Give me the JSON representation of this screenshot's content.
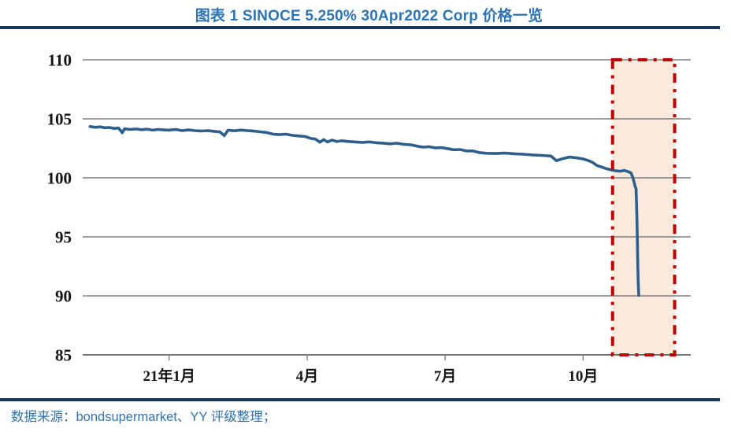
{
  "header": {
    "title": "图表 1 SINOCE 5.250% 30Apr2022 Corp 价格一览"
  },
  "footer": {
    "source_text": "数据来源：bondsupermarket、YY 评级整理；"
  },
  "colors": {
    "accent_blue": "#2E74B5",
    "rule_navy": "#17365D",
    "grid_gray": "#7F7F7F",
    "axis_gray": "#666666",
    "line_blue": "#2E5F8C",
    "highlight_red": "#C00000",
    "highlight_fill": "#FBE9DB",
    "label_black": "#141414"
  },
  "chart_data": {
    "type": "line",
    "title": "SINOCE 5.250% 30Apr2022 Corp 价格一览",
    "xlabel": "",
    "ylabel": "",
    "ylim": [
      85,
      110
    ],
    "yticks": [
      110,
      105,
      100,
      95,
      90,
      85
    ],
    "xlim": [
      -1.88,
      11.34
    ],
    "xticks": [
      {
        "t": 0,
        "label": "21年1月"
      },
      {
        "t": 3,
        "label": "4月"
      },
      {
        "t": 6,
        "label": "7月"
      },
      {
        "t": 9,
        "label": "10月"
      }
    ],
    "grid": true,
    "legend_position": "none",
    "highlight_region": {
      "t0": 9.64,
      "t1": 10.99,
      "v0": 85,
      "v1": 110,
      "fill": "#FBE9DB",
      "border_color": "#C00000",
      "border_style": "dash-dot"
    },
    "series": [
      {
        "name": "SINOCE 5.250% 30Apr2022 Corp",
        "color": "#2E5F8C",
        "points": [
          [
            -1.72,
            104.35
          ],
          [
            -1.6,
            104.28
          ],
          [
            -1.5,
            104.32
          ],
          [
            -1.4,
            104.25
          ],
          [
            -1.3,
            104.27
          ],
          [
            -1.2,
            104.18
          ],
          [
            -1.1,
            104.22
          ],
          [
            -1.02,
            103.82
          ],
          [
            -0.97,
            104.15
          ],
          [
            -0.85,
            104.1
          ],
          [
            -0.72,
            104.14
          ],
          [
            -0.6,
            104.08
          ],
          [
            -0.48,
            104.12
          ],
          [
            -0.36,
            104.04
          ],
          [
            -0.24,
            104.1
          ],
          [
            -0.12,
            104.06
          ],
          [
            0.0,
            104.04
          ],
          [
            0.14,
            104.1
          ],
          [
            0.28,
            104.0
          ],
          [
            0.42,
            104.06
          ],
          [
            0.56,
            104.0
          ],
          [
            0.7,
            103.97
          ],
          [
            0.84,
            104.0
          ],
          [
            0.98,
            103.94
          ],
          [
            1.1,
            103.9
          ],
          [
            1.2,
            103.58
          ],
          [
            1.28,
            104.04
          ],
          [
            1.42,
            103.99
          ],
          [
            1.56,
            104.05
          ],
          [
            1.7,
            104.0
          ],
          [
            1.84,
            103.96
          ],
          [
            1.98,
            103.9
          ],
          [
            2.12,
            103.84
          ],
          [
            2.26,
            103.7
          ],
          [
            2.4,
            103.66
          ],
          [
            2.54,
            103.7
          ],
          [
            2.68,
            103.6
          ],
          [
            2.82,
            103.55
          ],
          [
            2.96,
            103.5
          ],
          [
            3.08,
            103.34
          ],
          [
            3.18,
            103.28
          ],
          [
            3.28,
            103.02
          ],
          [
            3.36,
            103.24
          ],
          [
            3.44,
            103.04
          ],
          [
            3.54,
            103.2
          ],
          [
            3.64,
            103.08
          ],
          [
            3.76,
            103.14
          ],
          [
            3.9,
            103.08
          ],
          [
            4.05,
            103.04
          ],
          [
            4.2,
            103.0
          ],
          [
            4.35,
            103.05
          ],
          [
            4.5,
            102.97
          ],
          [
            4.65,
            102.94
          ],
          [
            4.8,
            102.88
          ],
          [
            4.95,
            102.93
          ],
          [
            5.1,
            102.84
          ],
          [
            5.25,
            102.8
          ],
          [
            5.4,
            102.68
          ],
          [
            5.52,
            102.6
          ],
          [
            5.64,
            102.64
          ],
          [
            5.78,
            102.54
          ],
          [
            5.92,
            102.56
          ],
          [
            6.05,
            102.48
          ],
          [
            6.18,
            102.38
          ],
          [
            6.32,
            102.4
          ],
          [
            6.46,
            102.28
          ],
          [
            6.6,
            102.28
          ],
          [
            6.74,
            102.14
          ],
          [
            6.9,
            102.08
          ],
          [
            7.1,
            102.06
          ],
          [
            7.3,
            102.1
          ],
          [
            7.5,
            102.04
          ],
          [
            7.7,
            102.0
          ],
          [
            7.9,
            101.94
          ],
          [
            8.1,
            101.9
          ],
          [
            8.3,
            101.85
          ],
          [
            8.42,
            101.45
          ],
          [
            8.55,
            101.62
          ],
          [
            8.7,
            101.76
          ],
          [
            8.85,
            101.7
          ],
          [
            9.0,
            101.6
          ],
          [
            9.1,
            101.48
          ],
          [
            9.2,
            101.32
          ],
          [
            9.3,
            101.05
          ],
          [
            9.4,
            100.92
          ],
          [
            9.5,
            100.78
          ],
          [
            9.6,
            100.68
          ],
          [
            9.7,
            100.6
          ],
          [
            9.8,
            100.56
          ],
          [
            9.9,
            100.62
          ],
          [
            9.98,
            100.52
          ],
          [
            10.04,
            100.42
          ],
          [
            10.08,
            100.05
          ],
          [
            10.11,
            99.6
          ],
          [
            10.13,
            99.3
          ],
          [
            10.15,
            99.1
          ],
          [
            10.16,
            98.0
          ],
          [
            10.17,
            96.5
          ],
          [
            10.18,
            94.5
          ],
          [
            10.19,
            92.5
          ],
          [
            10.2,
            91.0
          ],
          [
            10.21,
            90.05
          ]
        ]
      }
    ]
  }
}
